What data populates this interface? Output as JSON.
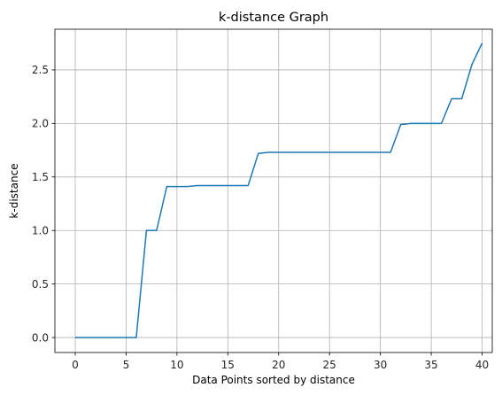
{
  "chart_data": {
    "type": "line",
    "title": "k-distance Graph",
    "xlabel": "Data Points sorted by distance",
    "ylabel": "k-distance",
    "xlim": [
      -2,
      41
    ],
    "ylim": [
      -0.14,
      2.88
    ],
    "xticks": [
      0,
      5,
      10,
      15,
      20,
      25,
      30,
      35,
      40
    ],
    "xtick_labels": [
      "0",
      "5",
      "10",
      "15",
      "20",
      "25",
      "30",
      "35",
      "40"
    ],
    "yticks": [
      0.0,
      0.5,
      1.0,
      1.5,
      2.0,
      2.5
    ],
    "ytick_labels": [
      "0.0",
      "0.5",
      "1.0",
      "1.5",
      "2.0",
      "2.5"
    ],
    "grid": true,
    "series": [
      {
        "color": "#1f77b4",
        "x": [
          0,
          1,
          2,
          3,
          4,
          5,
          6,
          7,
          8,
          9,
          10,
          11,
          12,
          13,
          14,
          15,
          16,
          17,
          18,
          19,
          20,
          21,
          22,
          23,
          24,
          25,
          26,
          27,
          28,
          29,
          30,
          31,
          32,
          33,
          34,
          35,
          36,
          37,
          38,
          39,
          40
        ],
        "values": [
          0,
          0,
          0,
          0,
          0,
          0,
          0,
          1.0,
          1.0,
          1.41,
          1.41,
          1.41,
          1.42,
          1.42,
          1.42,
          1.42,
          1.42,
          1.42,
          1.72,
          1.73,
          1.73,
          1.73,
          1.73,
          1.73,
          1.73,
          1.73,
          1.73,
          1.73,
          1.73,
          1.73,
          1.73,
          1.73,
          1.99,
          2.0,
          2.0,
          2.0,
          2.0,
          2.23,
          2.23,
          2.55,
          2.75
        ]
      }
    ]
  }
}
